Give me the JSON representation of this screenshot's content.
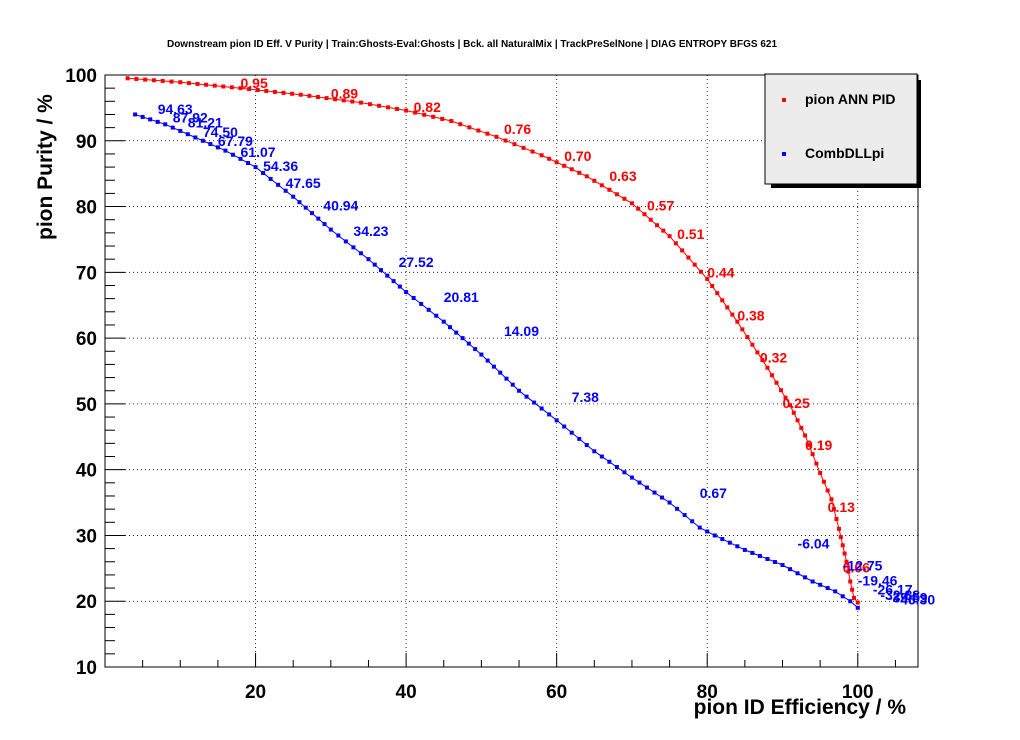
{
  "chart_data": {
    "type": "line",
    "title": "Downstream pion ID Eff. V Purity | Train:Ghosts-Eval:Ghosts | Bck. all NaturalMix | TrackPreSelNone | DIAG ENTROPY BFGS 621",
    "xlabel": "pion ID Efficiency / %",
    "ylabel": "pion Purity / %",
    "xlim": [
      0,
      108
    ],
    "ylim": [
      10,
      100
    ],
    "x_ticks": [
      "20",
      "40",
      "60",
      "80",
      "100"
    ],
    "y_ticks": [
      "10",
      "20",
      "30",
      "40",
      "50",
      "60",
      "70",
      "80",
      "90",
      "100"
    ],
    "grid": true,
    "legend_position": "top-right",
    "colors": {
      "red_series": "#ff0000",
      "blue_series": "#0000ff"
    },
    "series": [
      {
        "name": "pion ANN PID",
        "color": "#ff0000",
        "points": [
          [
            3,
            99.5
          ],
          [
            10,
            98.9
          ],
          [
            18,
            98.0
          ],
          [
            26,
            97.0
          ],
          [
            34,
            95.8
          ],
          [
            40,
            94.6
          ],
          [
            46,
            93.0
          ],
          [
            52,
            90.6
          ],
          [
            58,
            87.8
          ],
          [
            64,
            84.6
          ],
          [
            70,
            80.5
          ],
          [
            75,
            75.5
          ],
          [
            80,
            69.0
          ],
          [
            84,
            62.5
          ],
          [
            88,
            55.5
          ],
          [
            91,
            49.8
          ],
          [
            93,
            45.2
          ],
          [
            95,
            39.5
          ],
          [
            96.5,
            35.5
          ],
          [
            97.5,
            31.0
          ],
          [
            98.5,
            26.0
          ],
          [
            99,
            23.0
          ],
          [
            99.5,
            20.5
          ],
          [
            100,
            19.8
          ]
        ],
        "labels": [
          {
            "text": "0.95",
            "x": 18,
            "y": 98.0
          },
          {
            "text": "0.89",
            "x": 30,
            "y": 96.4
          },
          {
            "text": "0.82",
            "x": 41,
            "y": 94.4
          },
          {
            "text": "0.76",
            "x": 53,
            "y": 91.0
          },
          {
            "text": "0.70",
            "x": 61,
            "y": 86.9
          },
          {
            "text": "0.63",
            "x": 67,
            "y": 83.9
          },
          {
            "text": "0.57",
            "x": 72,
            "y": 79.4
          },
          {
            "text": "0.51",
            "x": 76,
            "y": 75.1
          },
          {
            "text": "0.44",
            "x": 80,
            "y": 69.2
          },
          {
            "text": "0.38",
            "x": 84,
            "y": 62.7
          },
          {
            "text": "0.32",
            "x": 87,
            "y": 56.3
          },
          {
            "text": "0.25",
            "x": 90,
            "y": 49.4
          },
          {
            "text": "0.19",
            "x": 93,
            "y": 43.0
          },
          {
            "text": "0.13",
            "x": 96,
            "y": 33.6
          },
          {
            "text": "0.06",
            "x": 98,
            "y": 24.4
          }
        ]
      },
      {
        "name": "CombDLLpi",
        "color": "#0000ff",
        "points": [
          [
            4,
            94.0
          ],
          [
            8,
            92.5
          ],
          [
            12,
            90.5
          ],
          [
            16,
            88.5
          ],
          [
            20,
            86.0
          ],
          [
            25,
            81.5
          ],
          [
            30,
            76.5
          ],
          [
            35,
            72.0
          ],
          [
            40,
            67.0
          ],
          [
            45,
            62.5
          ],
          [
            50,
            57.5
          ],
          [
            55,
            52.0
          ],
          [
            60,
            47.5
          ],
          [
            65,
            42.8
          ],
          [
            70,
            38.8
          ],
          [
            75,
            35.0
          ],
          [
            79,
            31.2
          ],
          [
            81,
            30.0
          ],
          [
            85,
            27.8
          ],
          [
            90,
            25.5
          ],
          [
            94,
            23.0
          ],
          [
            97,
            21.5
          ],
          [
            99,
            20.0
          ],
          [
            100,
            19.0
          ]
        ],
        "labels": [
          {
            "text": "94.63",
            "x": 7,
            "y": 94.1
          },
          {
            "text": "87.92",
            "x": 9,
            "y": 92.8
          },
          {
            "text": "81.21",
            "x": 11,
            "y": 92.0
          },
          {
            "text": "74.50",
            "x": 13,
            "y": 90.6
          },
          {
            "text": "67.79",
            "x": 15,
            "y": 89.2
          },
          {
            "text": "61.07",
            "x": 18,
            "y": 87.5
          },
          {
            "text": "54.36",
            "x": 21,
            "y": 85.4
          },
          {
            "text": "47.65",
            "x": 24,
            "y": 82.8
          },
          {
            "text": "40.94",
            "x": 29,
            "y": 79.4
          },
          {
            "text": "34.23",
            "x": 33,
            "y": 75.5
          },
          {
            "text": "27.52",
            "x": 39,
            "y": 70.8
          },
          {
            "text": "20.81",
            "x": 45,
            "y": 65.5
          },
          {
            "text": "14.09",
            "x": 53,
            "y": 60.3
          },
          {
            "text": "7.38",
            "x": 62,
            "y": 50.3
          },
          {
            "text": "0.67",
            "x": 79,
            "y": 35.7
          },
          {
            "text": "-6.04",
            "x": 92,
            "y": 28.0
          },
          {
            "text": "-12.75",
            "x": 98,
            "y": 24.7
          },
          {
            "text": "-19.46",
            "x": 100,
            "y": 22.4
          },
          {
            "text": "-26.17",
            "x": 102,
            "y": 21.0
          },
          {
            "text": "-32.88",
            "x": 103,
            "y": 20.2
          },
          {
            "text": "-39.59",
            "x": 104,
            "y": 19.8
          },
          {
            "text": "-46.30",
            "x": 105,
            "y": 19.5
          }
        ]
      }
    ]
  }
}
